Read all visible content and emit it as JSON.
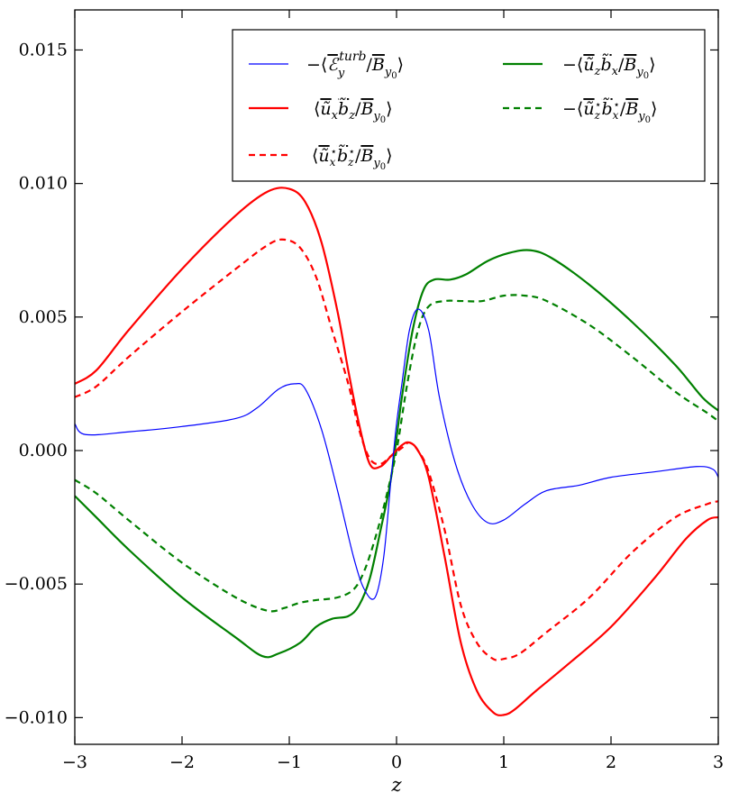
{
  "chart_data": {
    "type": "line",
    "xlabel": "z",
    "ylabel": "",
    "title": "",
    "xlim": [
      -3,
      3
    ],
    "ylim": [
      -0.011,
      0.0165
    ],
    "x_ticks": [
      -3,
      -2,
      -1,
      0,
      1,
      2,
      3
    ],
    "x_tick_labels": [
      "−3",
      "−2",
      "−1",
      "0",
      "1",
      "2",
      "3"
    ],
    "y_ticks": [
      -0.01,
      -0.005,
      0.0,
      0.005,
      0.01,
      0.015
    ],
    "y_tick_labels": [
      "−0.010",
      "−0.005",
      "0.000",
      "0.005",
      "0.010",
      "0.015"
    ],
    "grid": false,
    "legend_position": "top-right",
    "series": [
      {
        "name": "−⟨ℰy^turb / By0⟩",
        "color": "#0000ff",
        "style": "solid",
        "width": 1.2,
        "points": [
          [
            -3.0,
            0.001
          ],
          [
            -2.9,
            0.0006
          ],
          [
            -2.5,
            0.0007
          ],
          [
            -2.0,
            0.0009
          ],
          [
            -1.5,
            0.0012
          ],
          [
            -1.3,
            0.0016
          ],
          [
            -1.1,
            0.0023
          ],
          [
            -0.95,
            0.0025
          ],
          [
            -0.85,
            0.0023
          ],
          [
            -0.7,
            0.0008
          ],
          [
            -0.55,
            -0.0015
          ],
          [
            -0.4,
            -0.004
          ],
          [
            -0.3,
            -0.0052
          ],
          [
            -0.2,
            -0.0055
          ],
          [
            -0.12,
            -0.004
          ],
          [
            -0.05,
            -0.001
          ],
          [
            0.0,
            0.001
          ],
          [
            0.05,
            0.0025
          ],
          [
            0.12,
            0.0045
          ],
          [
            0.2,
            0.0053
          ],
          [
            0.3,
            0.0045
          ],
          [
            0.4,
            0.002
          ],
          [
            0.55,
            -0.0005
          ],
          [
            0.7,
            -0.002
          ],
          [
            0.85,
            -0.0027
          ],
          [
            1.0,
            -0.0026
          ],
          [
            1.2,
            -0.002
          ],
          [
            1.4,
            -0.0015
          ],
          [
            1.7,
            -0.0013
          ],
          [
            2.0,
            -0.001
          ],
          [
            2.4,
            -0.0008
          ],
          [
            2.8,
            -0.0006
          ],
          [
            2.95,
            -0.0007
          ],
          [
            3.0,
            -0.001
          ]
        ]
      },
      {
        "name": "⟨ũx b̃z / By0⟩",
        "color": "#ff0000",
        "style": "solid",
        "width": 2.2,
        "points": [
          [
            -3.0,
            0.0025
          ],
          [
            -2.8,
            0.003
          ],
          [
            -2.5,
            0.0045
          ],
          [
            -2.0,
            0.0068
          ],
          [
            -1.5,
            0.0088
          ],
          [
            -1.2,
            0.0097
          ],
          [
            -1.0,
            0.0098
          ],
          [
            -0.85,
            0.0093
          ],
          [
            -0.7,
            0.0078
          ],
          [
            -0.55,
            0.0052
          ],
          [
            -0.45,
            0.003
          ],
          [
            -0.35,
            0.001
          ],
          [
            -0.25,
            -0.0005
          ],
          [
            -0.15,
            -0.0006
          ],
          [
            -0.05,
            -0.0002
          ],
          [
            0.05,
            0.0002
          ],
          [
            0.12,
            0.0003
          ],
          [
            0.2,
            0.0
          ],
          [
            0.3,
            -0.001
          ],
          [
            0.45,
            -0.004
          ],
          [
            0.6,
            -0.0072
          ],
          [
            0.75,
            -0.009
          ],
          [
            0.9,
            -0.0098
          ],
          [
            1.0,
            -0.0099
          ],
          [
            1.1,
            -0.0097
          ],
          [
            1.3,
            -0.009
          ],
          [
            1.6,
            -0.008
          ],
          [
            2.0,
            -0.0066
          ],
          [
            2.4,
            -0.0048
          ],
          [
            2.7,
            -0.0033
          ],
          [
            2.9,
            -0.0026
          ],
          [
            3.0,
            -0.0025
          ]
        ]
      },
      {
        "name": "⟨ũx* b̃z* / By0⟩",
        "color": "#ff0000",
        "style": "dashed",
        "width": 2.2,
        "points": [
          [
            -3.0,
            0.002
          ],
          [
            -2.8,
            0.0024
          ],
          [
            -2.5,
            0.0035
          ],
          [
            -2.0,
            0.0052
          ],
          [
            -1.5,
            0.0068
          ],
          [
            -1.2,
            0.0077
          ],
          [
            -1.05,
            0.0079
          ],
          [
            -0.9,
            0.0076
          ],
          [
            -0.75,
            0.0065
          ],
          [
            -0.6,
            0.0045
          ],
          [
            -0.45,
            0.0025
          ],
          [
            -0.35,
            0.0008
          ],
          [
            -0.25,
            -0.0003
          ],
          [
            -0.15,
            -0.0005
          ],
          [
            -0.05,
            -0.0002
          ],
          [
            0.05,
            0.0001
          ],
          [
            0.12,
            0.0003
          ],
          [
            0.2,
            0.0
          ],
          [
            0.3,
            -0.0008
          ],
          [
            0.45,
            -0.003
          ],
          [
            0.6,
            -0.0058
          ],
          [
            0.75,
            -0.0072
          ],
          [
            0.9,
            -0.0078
          ],
          [
            1.0,
            -0.0078
          ],
          [
            1.15,
            -0.0076
          ],
          [
            1.4,
            -0.0068
          ],
          [
            1.8,
            -0.0055
          ],
          [
            2.2,
            -0.0038
          ],
          [
            2.6,
            -0.0025
          ],
          [
            2.9,
            -0.002
          ],
          [
            3.0,
            -0.0019
          ]
        ]
      },
      {
        "name": "−⟨ũz b̃x / By0⟩",
        "color": "#008000",
        "style": "solid",
        "width": 2.2,
        "points": [
          [
            -3.0,
            -0.0017
          ],
          [
            -2.8,
            -0.0025
          ],
          [
            -2.5,
            -0.0037
          ],
          [
            -2.0,
            -0.0055
          ],
          [
            -1.5,
            -0.007
          ],
          [
            -1.25,
            -0.0077
          ],
          [
            -1.1,
            -0.0076
          ],
          [
            -0.9,
            -0.0072
          ],
          [
            -0.75,
            -0.0066
          ],
          [
            -0.6,
            -0.0063
          ],
          [
            -0.45,
            -0.0062
          ],
          [
            -0.35,
            -0.0058
          ],
          [
            -0.25,
            -0.0048
          ],
          [
            -0.15,
            -0.003
          ],
          [
            -0.05,
            -0.001
          ],
          [
            0.05,
            0.002
          ],
          [
            0.15,
            0.0045
          ],
          [
            0.25,
            0.006
          ],
          [
            0.35,
            0.0064
          ],
          [
            0.5,
            0.0064
          ],
          [
            0.65,
            0.0066
          ],
          [
            0.85,
            0.0071
          ],
          [
            1.05,
            0.0074
          ],
          [
            1.25,
            0.0075
          ],
          [
            1.45,
            0.0072
          ],
          [
            1.8,
            0.0062
          ],
          [
            2.2,
            0.0048
          ],
          [
            2.6,
            0.0032
          ],
          [
            2.85,
            0.002
          ],
          [
            3.0,
            0.0015
          ]
        ]
      },
      {
        "name": "−⟨ũz* b̃x* / By0⟩",
        "color": "#008000",
        "style": "dashed",
        "width": 2.2,
        "points": [
          [
            -3.0,
            -0.0011
          ],
          [
            -2.8,
            -0.0016
          ],
          [
            -2.5,
            -0.0026
          ],
          [
            -2.0,
            -0.0042
          ],
          [
            -1.5,
            -0.0055
          ],
          [
            -1.2,
            -0.006
          ],
          [
            -1.05,
            -0.0059
          ],
          [
            -0.9,
            -0.0057
          ],
          [
            -0.75,
            -0.0056
          ],
          [
            -0.55,
            -0.0055
          ],
          [
            -0.4,
            -0.0052
          ],
          [
            -0.3,
            -0.0045
          ],
          [
            -0.2,
            -0.0033
          ],
          [
            -0.1,
            -0.0018
          ],
          [
            0.0,
            0.0
          ],
          [
            0.1,
            0.0025
          ],
          [
            0.2,
            0.0045
          ],
          [
            0.3,
            0.0054
          ],
          [
            0.45,
            0.0056
          ],
          [
            0.6,
            0.0056
          ],
          [
            0.8,
            0.0056
          ],
          [
            1.0,
            0.0058
          ],
          [
            1.2,
            0.0058
          ],
          [
            1.4,
            0.0056
          ],
          [
            1.8,
            0.0047
          ],
          [
            2.2,
            0.0035
          ],
          [
            2.6,
            0.0022
          ],
          [
            2.9,
            0.0014
          ],
          [
            3.0,
            0.0011
          ]
        ]
      }
    ]
  },
  "legend": {
    "turb_minus": "−⟨",
    "turb_E": "ℰ",
    "turb_sub": "y",
    "turb_sup": "turb",
    "slash": "/",
    "B": "B",
    "B_sub": "y",
    "B_subsub": "0",
    "rangle": "⟩",
    "langle": "⟨",
    "minus_langle": "−⟨",
    "u": "ũ",
    "b": "b̃",
    "sub_x": "x",
    "sub_z": "z",
    "star": "⋆"
  }
}
